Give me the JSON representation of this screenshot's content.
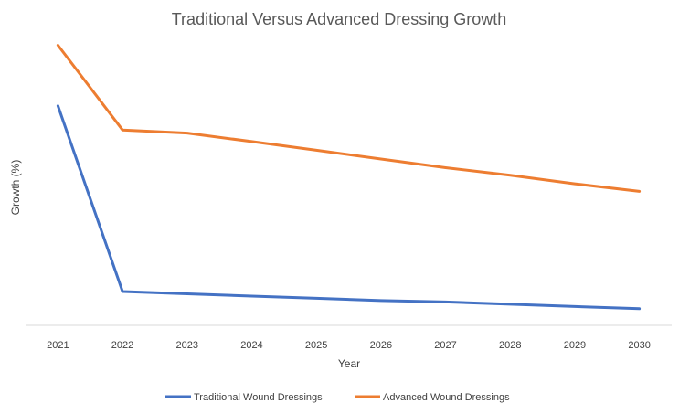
{
  "chart_data": {
    "type": "line",
    "title": "Traditional Versus Advanced Dressing Growth",
    "xlabel": "Year",
    "ylabel": "Growth (%)",
    "x": [
      "2021",
      "2022",
      "2023",
      "2024",
      "2025",
      "2026",
      "2027",
      "2028",
      "2029",
      "2030"
    ],
    "ylim": [
      0,
      100
    ],
    "grid": false,
    "legend_position": "bottom",
    "series": [
      {
        "name": "Traditional Wound Dressings",
        "color": "#4472C4",
        "values": [
          78,
          12,
          11.2,
          10.4,
          9.6,
          8.8,
          8.3,
          7.5,
          6.7,
          5.9
        ]
      },
      {
        "name": "Advanced Wound Dressings",
        "color": "#ED7D31",
        "values": [
          99.5,
          69.4,
          68.3,
          65.3,
          62.2,
          59.1,
          56,
          53.3,
          50.3,
          47.6
        ]
      }
    ]
  }
}
